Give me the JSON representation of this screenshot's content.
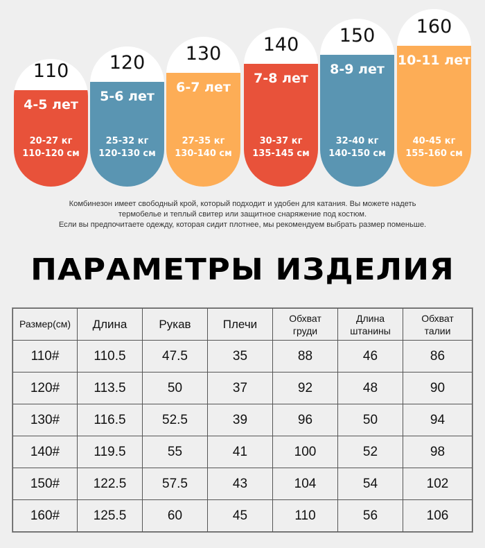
{
  "size_cards": [
    {
      "size": "110",
      "age": "4-5 лет",
      "weight": "20-27 кг",
      "height": "110-120 см",
      "color": "#e8523a"
    },
    {
      "size": "120",
      "age": "5-6 лет",
      "weight": "25-32 кг",
      "height": "120-130 см",
      "color": "#5a95b2"
    },
    {
      "size": "130",
      "age": "6-7 лет",
      "weight": "27-35 кг",
      "height": "130-140 см",
      "color": "#fdad56"
    },
    {
      "size": "140",
      "age": "7-8 лет",
      "weight": "30-37 кг",
      "height": "135-145 см",
      "color": "#e8523a"
    },
    {
      "size": "150",
      "age": "8-9 лет",
      "weight": "32-40 кг",
      "height": "140-150 см",
      "color": "#5a95b2"
    },
    {
      "size": "160",
      "age": "10-11 лет",
      "weight": "40-45 кг",
      "height": "155-160 см",
      "color": "#fdad56"
    }
  ],
  "note": {
    "line1": "Комбинезон имеет свободный крой, который подходит и удобен для катания. Вы можете надеть",
    "line2": "термобелье и теплый свитер или защитное снаряжение под костюм.",
    "line3": "Если вы предпочитаете одежду, которая сидит плотнее, мы рекомендуем выбрать размер поменьше."
  },
  "title": "ПАРАМЕТРЫ ИЗДЕЛИЯ",
  "table": {
    "headers": [
      {
        "l1": "Размер(см)",
        "l2": ""
      },
      {
        "l1": "Длина",
        "l2": ""
      },
      {
        "l1": "Рукав",
        "l2": ""
      },
      {
        "l1": "Плечи",
        "l2": ""
      },
      {
        "l1": "Обхват",
        "l2": "груди"
      },
      {
        "l1": "Длина",
        "l2": "штанины"
      },
      {
        "l1": "Обхват",
        "l2": "талии"
      }
    ],
    "rows": [
      [
        "110#",
        "110.5",
        "47.5",
        "35",
        "88",
        "46",
        "86"
      ],
      [
        "120#",
        "113.5",
        "50",
        "37",
        "92",
        "48",
        "90"
      ],
      [
        "130#",
        "116.5",
        "52.5",
        "39",
        "96",
        "50",
        "94"
      ],
      [
        "140#",
        "119.5",
        "55",
        "41",
        "100",
        "52",
        "98"
      ],
      [
        "150#",
        "122.5",
        "57.5",
        "43",
        "104",
        "54",
        "102"
      ],
      [
        "160#",
        "125.5",
        "60",
        "45",
        "110",
        "56",
        "106"
      ]
    ]
  }
}
